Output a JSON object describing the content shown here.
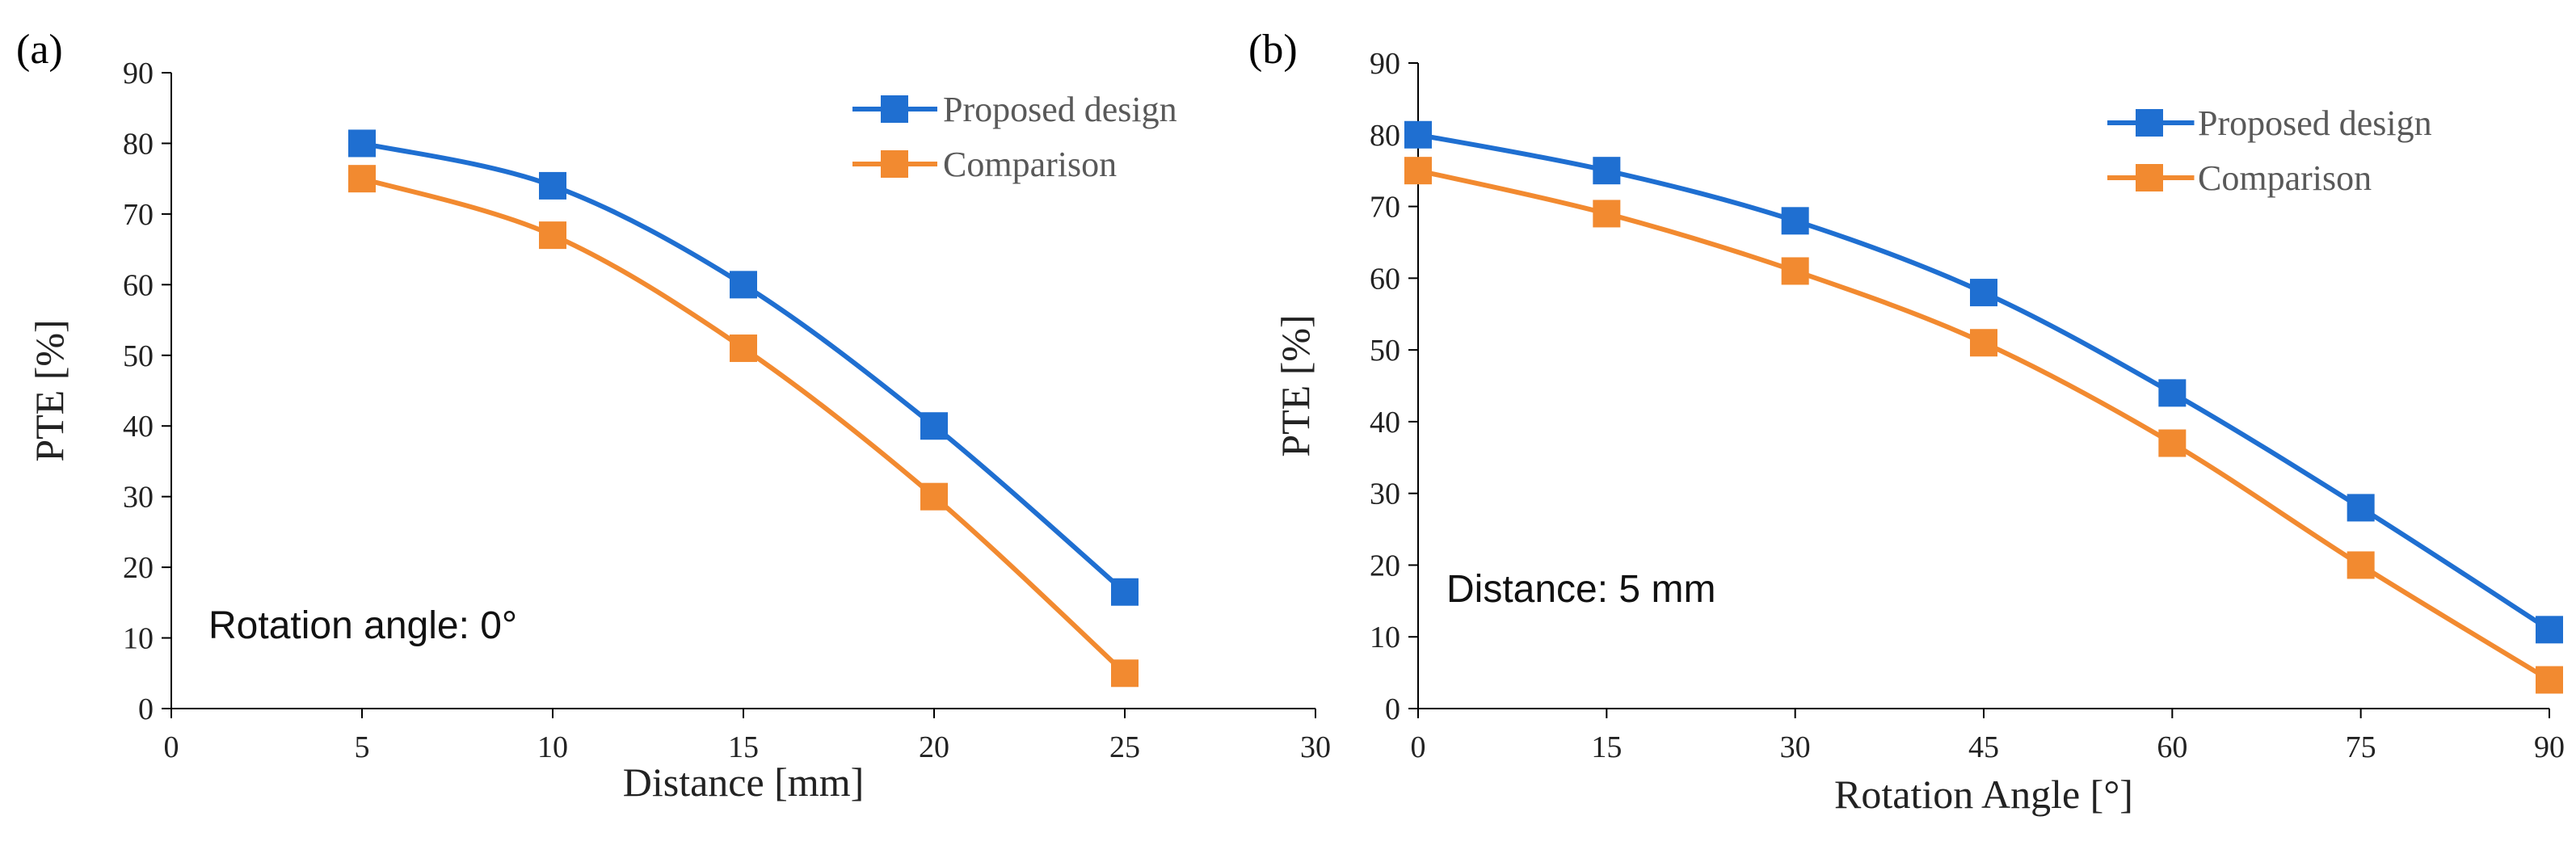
{
  "chart_data": [
    {
      "type": "line",
      "panel_label": "(a)",
      "xlabel": "Distance [mm]",
      "ylabel": "PTE [%]",
      "xlim": [
        0,
        30
      ],
      "ylim": [
        0,
        90
      ],
      "xticks": [
        0,
        5,
        10,
        15,
        20,
        25,
        30
      ],
      "yticks": [
        0,
        10,
        20,
        30,
        40,
        50,
        60,
        70,
        80,
        90
      ],
      "x": [
        5,
        10,
        15,
        20,
        25
      ],
      "series": [
        {
          "name": "Proposed design",
          "color": "#1f6fd1",
          "values": [
            80,
            74,
            60,
            40,
            16.5
          ]
        },
        {
          "name": "Comparison",
          "color": "#f28a30",
          "values": [
            75,
            67,
            51,
            30,
            5
          ]
        }
      ],
      "annotation": "Rotation angle: 0°",
      "legend": "top-right"
    },
    {
      "type": "line",
      "panel_label": "(b)",
      "xlabel": "Rotation Angle [°]",
      "ylabel": "PTE [%]",
      "xlim": [
        0,
        90
      ],
      "ylim": [
        0,
        90
      ],
      "xticks": [
        0,
        15,
        30,
        45,
        60,
        75,
        90
      ],
      "yticks": [
        0,
        10,
        20,
        30,
        40,
        50,
        60,
        70,
        80,
        90
      ],
      "x": [
        0,
        15,
        30,
        45,
        60,
        75,
        90
      ],
      "series": [
        {
          "name": "Proposed design",
          "color": "#1f6fd1",
          "values": [
            80,
            75,
            68,
            58,
            44,
            28,
            11
          ]
        },
        {
          "name": "Comparison",
          "color": "#f28a30",
          "values": [
            75,
            69,
            61,
            51,
            37,
            20,
            4
          ]
        }
      ],
      "annotation": "Distance: 5 mm",
      "legend": "top-right"
    }
  ]
}
